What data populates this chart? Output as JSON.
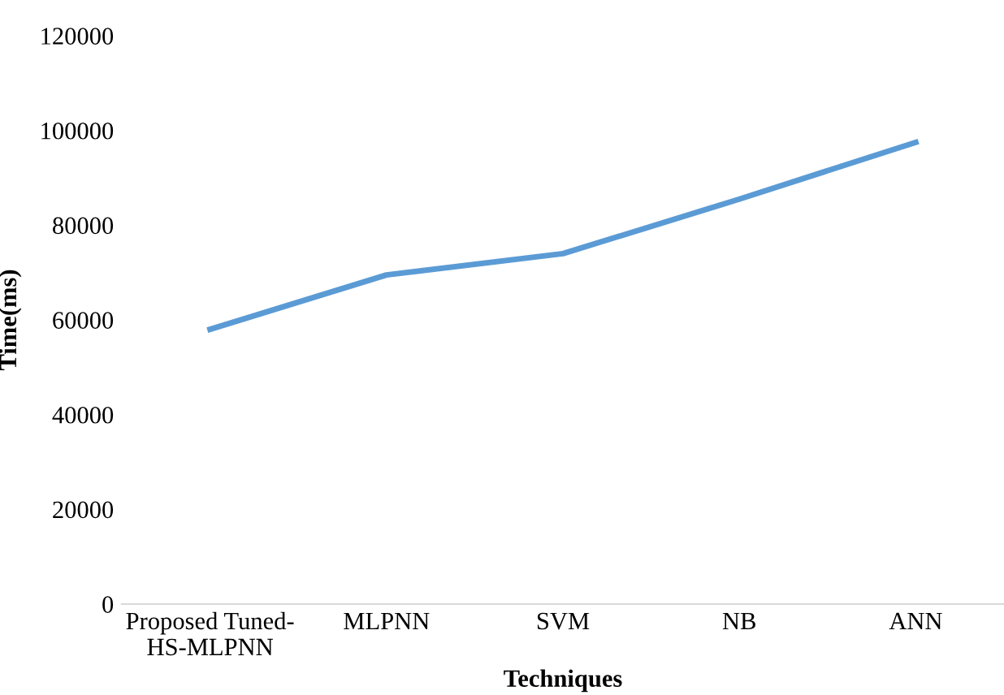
{
  "chart_data": {
    "type": "line",
    "xlabel": "Techniques",
    "ylabel": "Time(ms)",
    "categories": [
      "Proposed Tuned-\nHS-MLPNN",
      "MLPNN",
      "SVM",
      "NB",
      "ANN"
    ],
    "series": [
      {
        "color": "#5b9bd5",
        "values": [
          58000,
          69500,
          74000,
          85500,
          97500
        ]
      }
    ],
    "ylim": [
      0,
      120000
    ],
    "yticks": [
      0,
      20000,
      40000,
      60000,
      80000,
      100000,
      120000
    ],
    "grid": false,
    "marker": "none",
    "line_style": "solid"
  }
}
